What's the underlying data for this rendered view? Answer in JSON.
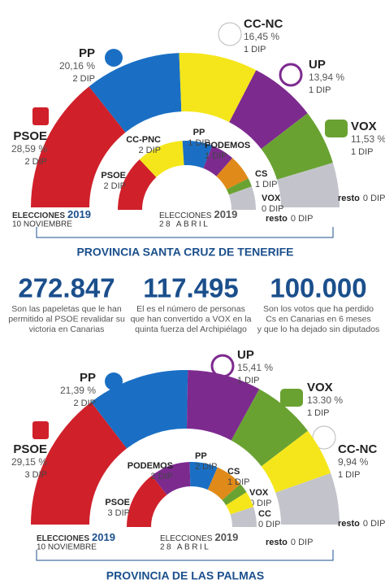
{
  "chart_data": [
    {
      "type": "donut",
      "title": "ELECCIONES",
      "year": "2019",
      "subtitle": "10 NOVIEMBRE",
      "categories": [
        "PSOE",
        "PP",
        "CC-NC",
        "UP",
        "VOX",
        "resto"
      ],
      "values": [
        28.59,
        20.16,
        16.45,
        13.94,
        11.53,
        9.33
      ],
      "value_labels": [
        "28,59 %",
        "20,16 %",
        "16,45 %",
        "13,94 %",
        "11,53 %",
        null
      ],
      "seats": [
        2,
        2,
        1,
        1,
        1,
        0
      ],
      "seat_labels": [
        "2 DIP",
        "2 DIP",
        "1 DIP",
        "1 DIP",
        "1 DIP",
        "0 DIP"
      ],
      "colors": [
        "#d0202a",
        "#1a6fc4",
        "#f5e61b",
        "#7d2a8f",
        "#6aa232",
        "#c3c4cb"
      ]
    },
    {
      "type": "donut",
      "title": "ELECCIONES",
      "year": "2019",
      "subtitle": "28 ABRIL",
      "categories": [
        "PSOE",
        "CC-PNC",
        "PP",
        "PODEMOS",
        "CS",
        "VOX",
        "resto"
      ],
      "values": [
        26,
        22,
        14,
        11,
        12,
        4,
        11
      ],
      "seats": [
        2,
        2,
        1,
        1,
        1,
        0,
        0
      ],
      "seat_labels": [
        "2 DIP",
        "2 DIP",
        "1 DIP",
        "1 DIP",
        "1 DIP",
        "0 DIP",
        "0 DIP"
      ],
      "colors": [
        "#d0202a",
        "#f5e61b",
        "#1a6fc4",
        "#7d2a8f",
        "#e08a1a",
        "#6aa232",
        "#c3c4cb"
      ]
    },
    {
      "type": "donut",
      "title": "ELECCIONES",
      "year": "2019",
      "subtitle": "10 NOVIEMBRE",
      "categories": [
        "PSOE",
        "PP",
        "UP",
        "VOX",
        "CC-NC",
        "resto"
      ],
      "values": [
        29.15,
        21.39,
        15.41,
        13.3,
        9.94,
        10.81
      ],
      "value_labels": [
        "29,15 %",
        "21,39 %",
        "15,41 %",
        "13.30 %",
        "9,94 %",
        null
      ],
      "seats": [
        3,
        2,
        1,
        1,
        1,
        0
      ],
      "seat_labels": [
        "3 DIP",
        "2 DIP",
        "1 DIP",
        "1 DIP",
        "1 DIP",
        "0 DIP"
      ],
      "colors": [
        "#d0202a",
        "#1a6fc4",
        "#7d2a8f",
        "#6aa232",
        "#f5e61b",
        "#c3c4cb"
      ]
    },
    {
      "type": "donut",
      "title": "ELECCIONES",
      "year": "2019",
      "subtitle": "28 ABRIL",
      "categories": [
        "PSOE",
        "PODEMOS",
        "PP",
        "CS",
        "VOX",
        "CC",
        "resto"
      ],
      "values": [
        29,
        20,
        14,
        14,
        5,
        8,
        10
      ],
      "seats": [
        3,
        2,
        2,
        1,
        0,
        0,
        0
      ],
      "seat_labels": [
        "3 DIP",
        "2 DIP",
        "2 DIP",
        "1 DIP",
        "0 DIP",
        "0 DIP",
        "0 DIP"
      ],
      "colors": [
        "#d0202a",
        "#7d2a8f",
        "#1a6fc4",
        "#e08a1a",
        "#6aa232",
        "#f5e61b",
        "#c3c4cb"
      ]
    }
  ],
  "stats": [
    {
      "number": "272.847",
      "lines": [
        "Son las papeletas que le han",
        "permitido al PSOE revalidar su",
        "victoria en Canarias"
      ]
    },
    {
      "number": "117.495",
      "lines": [
        "El es el número de personas",
        "que han convertido a VOX en la",
        "quinta fuerza del Archipiélago"
      ]
    },
    {
      "number": "100.000",
      "lines": [
        "Son los votos que ha perdido",
        "Cs en Canarias en 6 meses",
        "y que lo ha dejado sin diputados"
      ]
    }
  ],
  "provinces": [
    "PROVINCIA SANTA CRUZ DE TENERIFE",
    "PROVINCIA DE LAS PALMAS"
  ]
}
